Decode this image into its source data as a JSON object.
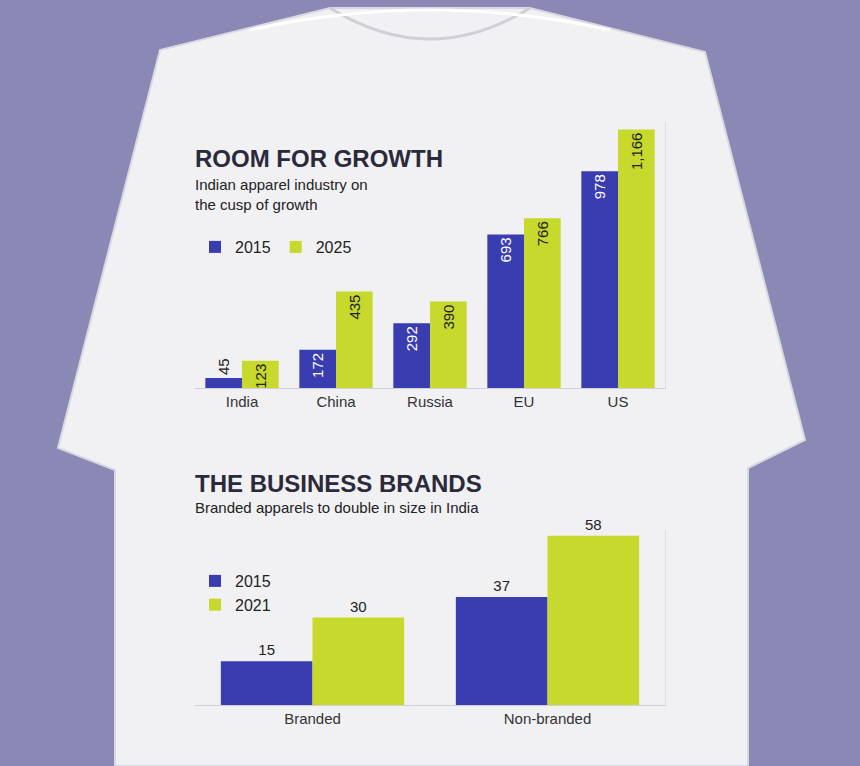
{
  "chart_data": [
    {
      "type": "bar",
      "title": "ROOM FOR GROWTH",
      "subtitle": "Indian apparel industry on the cusp of growth",
      "categories": [
        "India",
        "China",
        "Russia",
        "EU",
        "US"
      ],
      "series": [
        {
          "name": "2015",
          "color": "#3a3db0",
          "values": [
            45,
            172,
            292,
            693,
            978
          ]
        },
        {
          "name": "2025",
          "color": "#c6d92c",
          "values": [
            123,
            435,
            390,
            766,
            1166
          ],
          "value_labels": [
            "123",
            "435",
            "390",
            "766",
            "1,166"
          ]
        }
      ],
      "ylim": [
        0,
        1200
      ],
      "data_labels": true,
      "tick_labels": "x",
      "legend": "top left"
    },
    {
      "type": "bar",
      "title": "THE BUSINESS BRANDS",
      "subtitle": "Branded apparels to double in size in India",
      "categories": [
        "Branded",
        "Non-branded"
      ],
      "series": [
        {
          "name": "2015",
          "color": "#3a3db0",
          "values": [
            15,
            37
          ]
        },
        {
          "name": "2021",
          "color": "#c6d92c",
          "values": [
            30,
            58
          ]
        }
      ],
      "ylim": [
        0,
        60
      ],
      "data_labels": true,
      "tick_labels": "x",
      "legend": "top left"
    }
  ]
}
